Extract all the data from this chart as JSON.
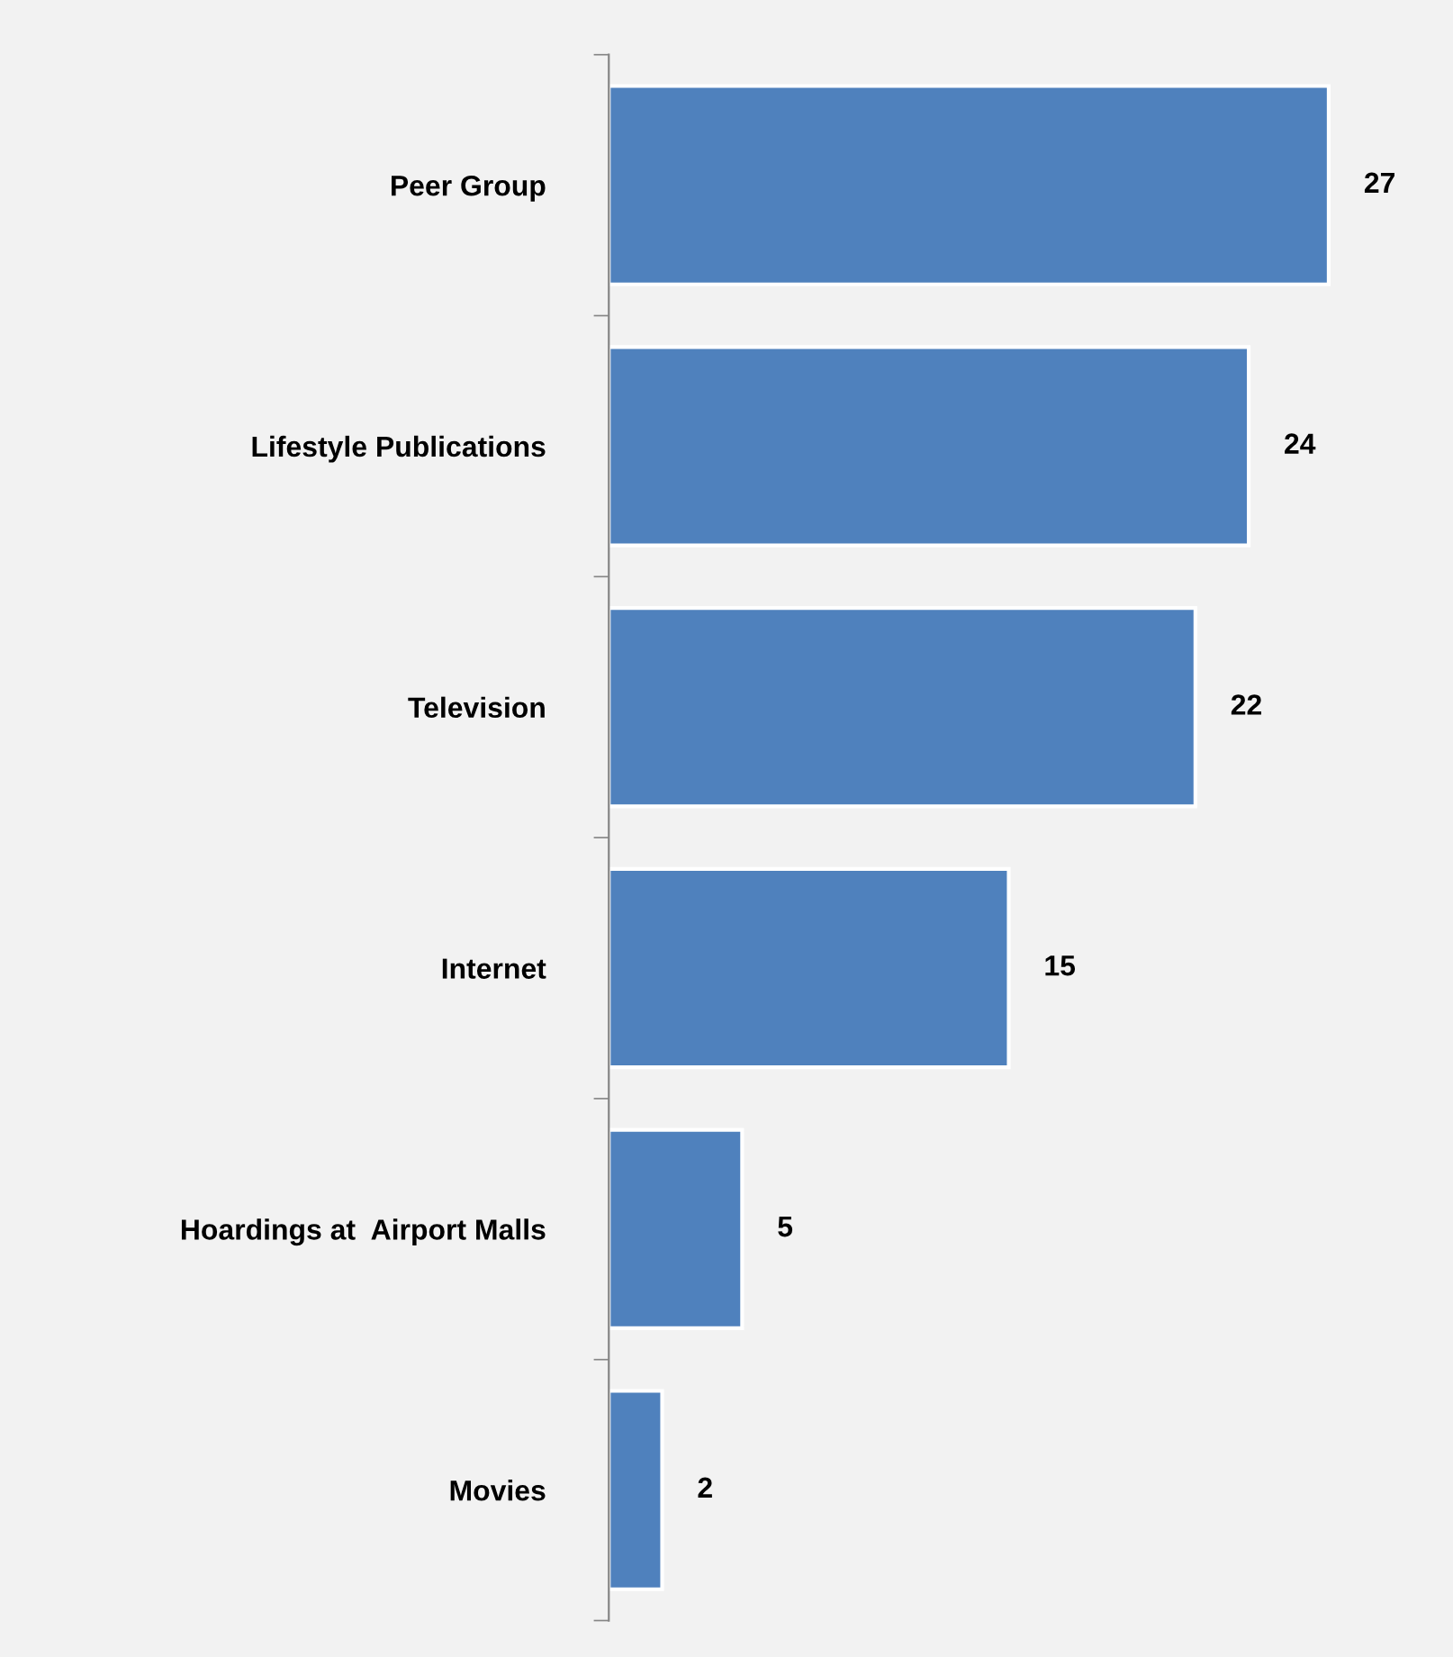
{
  "chart_data": {
    "type": "bar",
    "orientation": "horizontal",
    "categories": [
      "Peer Group",
      "Lifestyle Publications",
      "Television",
      "Internet",
      "Hoardings at  Airport Malls",
      "Movies"
    ],
    "values": [
      27,
      24,
      22,
      15,
      5,
      2
    ],
    "color": "#4f81bd",
    "data_labels": true,
    "grid": false,
    "legend": false,
    "tick_labels": "y"
  }
}
